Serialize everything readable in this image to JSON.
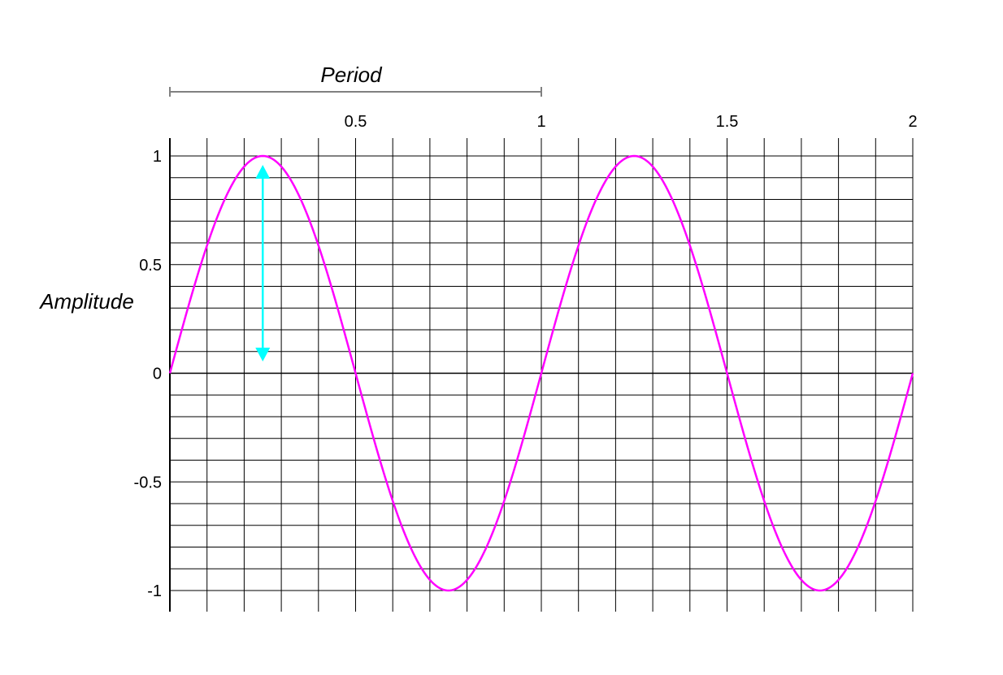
{
  "chart_data": {
    "type": "line",
    "title": "",
    "xlabel": "Period",
    "ylabel": "Amplitude",
    "xlim": [
      0,
      2
    ],
    "ylim": [
      -1,
      1
    ],
    "x_ticks": [
      0.5,
      1,
      1.5,
      2
    ],
    "x_tick_labels": [
      "0.5",
      "1",
      "1.5",
      "2"
    ],
    "y_ticks": [
      1,
      0.5,
      0,
      -0.5,
      -1
    ],
    "y_tick_labels": [
      "1",
      "0.5",
      "0",
      "-0.5",
      "-1"
    ],
    "x_gridlines": [
      0.1,
      0.2,
      0.3,
      0.4,
      0.5,
      0.6,
      0.7,
      0.8,
      0.9,
      1.0,
      1.1,
      1.2,
      1.3,
      1.4,
      1.5,
      1.6,
      1.7,
      1.8,
      1.9,
      2.0
    ],
    "y_grid_step": 0.1,
    "grid": true,
    "series": [
      {
        "function": "sin(2*pi*x)",
        "color": "#ff00ff",
        "x": [
          0,
          0.125,
          0.25,
          0.375,
          0.5,
          0.625,
          0.75,
          0.875,
          1,
          1.125,
          1.25,
          1.375,
          1.5,
          1.625,
          1.75,
          1.875,
          2
        ],
        "y": [
          0,
          0.707,
          1,
          0.707,
          0,
          -0.707,
          -1,
          -0.707,
          0,
          0.707,
          1,
          0.707,
          0,
          -0.707,
          -1,
          -0.707,
          0
        ]
      }
    ],
    "annotations": {
      "period_bracket": {
        "x_from": 0,
        "x_to": 1,
        "color": "#808080"
      },
      "amplitude_arrow": {
        "x": 0.25,
        "y_from": 0,
        "y_to": 1,
        "color": "#00ffff"
      }
    }
  }
}
